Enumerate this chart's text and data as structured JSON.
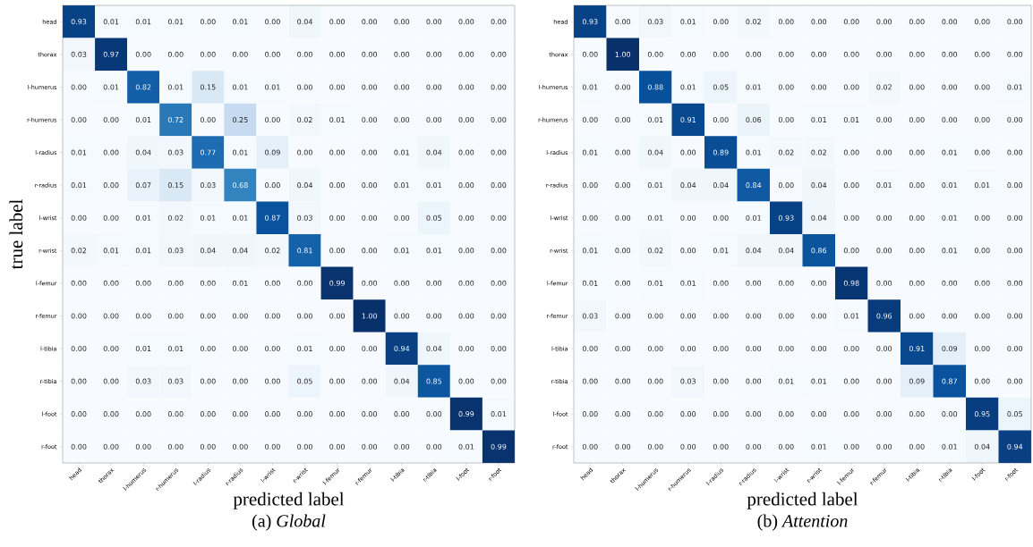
{
  "chart_data": [
    {
      "type": "heatmap",
      "title": "(a) *Global*",
      "xlabel": "predicted label",
      "ylabel": "true label",
      "categories": [
        "head",
        "thorax",
        "l-humerus",
        "r-humerus",
        "l-radius",
        "r-radius",
        "l-wrist",
        "r-wrist",
        "l-femur",
        "r-femur",
        "l-tibia",
        "r-tibia",
        "l-foot",
        "r-foot"
      ],
      "y_categories": [
        "head",
        "thorax",
        "l-humerus",
        "r-humerus",
        "l-radius",
        "r-radius",
        "l-wrist",
        "r-wrist",
        "l-femur",
        "r-femur",
        "l-tibia",
        "r-tibia",
        "l-foot",
        "r-foot"
      ],
      "cells": [
        [
          0.93,
          0.01,
          0.01,
          0.01,
          0,
          0.01,
          0,
          0.04,
          0,
          0,
          0,
          0,
          0,
          0
        ],
        [
          0.03,
          0.97,
          0,
          0,
          0,
          0,
          0,
          0,
          0,
          0,
          0,
          0,
          0,
          0
        ],
        [
          0,
          0.01,
          0.82,
          0.01,
          0.15,
          0.01,
          0.01,
          0,
          0,
          0,
          0,
          0,
          0,
          0
        ],
        [
          0,
          0,
          0.01,
          0.72,
          0,
          0.25,
          0,
          0.02,
          0.01,
          0,
          0,
          0,
          0,
          0
        ],
        [
          0.01,
          0,
          0.04,
          0.03,
          0.77,
          0.01,
          0.09,
          0,
          0,
          0,
          0.01,
          0.04,
          0,
          0
        ],
        [
          0.01,
          0,
          0.07,
          0.15,
          0.03,
          0.68,
          0,
          0.04,
          0,
          0,
          0.01,
          0.01,
          0,
          0
        ],
        [
          0,
          0,
          0.01,
          0.02,
          0.01,
          0.01,
          0.87,
          0.03,
          0,
          0,
          0,
          0.05,
          0,
          0
        ],
        [
          0.02,
          0.01,
          0.01,
          0.03,
          0.04,
          0.04,
          0.02,
          0.81,
          0,
          0,
          0.01,
          0.01,
          0,
          0
        ],
        [
          0,
          0,
          0,
          0,
          0,
          0.01,
          0,
          0,
          0.99,
          0,
          0,
          0,
          0,
          0
        ],
        [
          0,
          0,
          0,
          0,
          0,
          0,
          0,
          0,
          0,
          1,
          0,
          0,
          0,
          0
        ],
        [
          0,
          0,
          0.01,
          0.01,
          0,
          0,
          0,
          0.01,
          0,
          0,
          0.94,
          0.04,
          0,
          0
        ],
        [
          0,
          0,
          0.03,
          0.03,
          0,
          0,
          0,
          0.05,
          0,
          0,
          0.04,
          0.85,
          0,
          0
        ],
        [
          0,
          0,
          0,
          0,
          0,
          0,
          0,
          0,
          0,
          0,
          0,
          0,
          0.99,
          0.01
        ],
        [
          0,
          0,
          0,
          0,
          0,
          0,
          0,
          0,
          0,
          0,
          0,
          0,
          0.01,
          0.99
        ]
      ],
      "cell_labels": [
        [
          "0.93",
          "0.01",
          "0.01",
          "0.01",
          "0.00",
          "0.01",
          "0.00",
          "0.04",
          "0.00",
          "0.00",
          "0.00",
          "0.00",
          "0.00",
          "0.00"
        ],
        [
          "0.03",
          "0.97",
          "0.00",
          "0.00",
          "0.00",
          "0.00",
          "0.00",
          "0.00",
          "0.00",
          "0.00",
          "0.00",
          "0.00",
          "0.00",
          "0.00"
        ],
        [
          "0.00",
          "0.01",
          "0.82",
          "0.01",
          "0.15",
          "0.01",
          "0.01",
          "0.00",
          "0.00",
          "0.00",
          "0.00",
          "0.00",
          "0.00",
          "0.00"
        ],
        [
          "0.00",
          "0.00",
          "0.01",
          "0.72",
          "0.00",
          "0.25",
          "0.00",
          "0.02",
          "0.01",
          "0.00",
          "0.00",
          "0.00",
          "0.00",
          "0.00"
        ],
        [
          "0.01",
          "0.00",
          "0.04",
          "0.03",
          "0.77",
          "0.01",
          "0.09",
          "0.00",
          "0.00",
          "0.00",
          "0.01",
          "0.04",
          "0.00",
          "0.00"
        ],
        [
          "0.01",
          "0.00",
          "0.07",
          "0.15",
          "0.03",
          "0.68",
          "0.00",
          "0.04",
          "0.00",
          "0.00",
          "0.01",
          "0.01",
          "0.00",
          "0.00"
        ],
        [
          "0.00",
          "0.00",
          "0.01",
          "0.02",
          "0.01",
          "0.01",
          "0.87",
          "0.03",
          "0.00",
          "0.00",
          "0.00",
          "0.05",
          "0.00",
          "0.00"
        ],
        [
          "0.02",
          "0.01",
          "0.01",
          "0.03",
          "0.04",
          "0.04",
          "0.02",
          "0.81",
          "0.00",
          "0.00",
          "0.01",
          "0.01",
          "0.00",
          "0.00"
        ],
        [
          "0.00",
          "0.00",
          "0.00",
          "0.00",
          "0.00",
          "0.01",
          "0.00",
          "0.00",
          "0.99",
          "0.00",
          "0.00",
          "0.00",
          "0.00",
          "0.00"
        ],
        [
          "0.00",
          "0.00",
          "0.00",
          "0.00",
          "0.00",
          "0.00",
          "0.00",
          "0.00",
          "0.00",
          "1.00",
          "0.00",
          "0.00",
          "0.00",
          "0.00"
        ],
        [
          "0.00",
          "0.00",
          "0.01",
          "0.01",
          "0.00",
          "0.00",
          "0.00",
          "0.01",
          "0.00",
          "0.00",
          "0.94",
          "0.04",
          "0.00",
          "0.00"
        ],
        [
          "0.00",
          "0.00",
          "0.03",
          "0.03",
          "0.00",
          "0.00",
          "0.00",
          "0.05",
          "0.00",
          "0.00",
          "0.04",
          "0.85",
          "0.00",
          "0.00"
        ],
        [
          "0.00",
          "0.00",
          "0.00",
          "0.00",
          "0.00",
          "0.00",
          "0.00",
          "0.00",
          "0.00",
          "0.00",
          "0.00",
          "0.00",
          "0.99",
          "0.01"
        ],
        [
          "0.00",
          "0.00",
          "0.00",
          "0.00",
          "0.00",
          "0.00",
          "0.00",
          "0.00",
          "0.00",
          "0.00",
          "0.00",
          "0.00",
          "0.01",
          "0.99"
        ]
      ]
    },
    {
      "type": "heatmap",
      "title": "(b) *Attention*",
      "xlabel": "predicted label",
      "categories": [
        "head",
        "thorax",
        "l-humerus",
        "r-humerus",
        "l-radius",
        "r-radius",
        "l-wrist",
        "r-wrist",
        "l-femur",
        "r-femur",
        "l-tibia",
        "r-tibia",
        "l-foot",
        "r-foot"
      ],
      "y_categories": [
        "head",
        "thorax",
        "l-humerus",
        "r-humerus",
        "l-radius",
        "r-radius",
        "l-wrist",
        "r-wrist",
        "l-femur",
        "r-femur",
        "l-tibia",
        "r-tibia",
        "l-foot",
        "r-foot"
      ],
      "cells": [
        [
          0.93,
          0,
          0.03,
          0.01,
          0,
          0.02,
          0,
          0,
          0,
          0,
          0,
          0,
          0,
          0
        ],
        [
          0,
          1,
          0,
          0,
          0,
          0,
          0,
          0,
          0,
          0,
          0,
          0,
          0,
          0
        ],
        [
          0.01,
          0,
          0.88,
          0.01,
          0.05,
          0.01,
          0,
          0,
          0,
          0.02,
          0,
          0,
          0,
          0.01
        ],
        [
          0,
          0,
          0.01,
          0.91,
          0,
          0.06,
          0,
          0.01,
          0.01,
          0,
          0,
          0,
          0,
          0
        ],
        [
          0.01,
          0,
          0.04,
          0,
          0.89,
          0.01,
          0.02,
          0.02,
          0,
          0,
          0,
          0.01,
          0,
          0
        ],
        [
          0,
          0,
          0.01,
          0.04,
          0.04,
          0.84,
          0,
          0.04,
          0,
          0.01,
          0,
          0.01,
          0.01,
          0
        ],
        [
          0,
          0,
          0.01,
          0,
          0,
          0.01,
          0.93,
          0.04,
          0,
          0,
          0,
          0.01,
          0,
          0
        ],
        [
          0.01,
          0,
          0.02,
          0,
          0.01,
          0.04,
          0.04,
          0.86,
          0,
          0,
          0,
          0.01,
          0,
          0
        ],
        [
          0.01,
          0,
          0.01,
          0.01,
          0,
          0,
          0,
          0,
          0.98,
          0,
          0,
          0,
          0,
          0
        ],
        [
          0.03,
          0,
          0,
          0,
          0,
          0,
          0,
          0,
          0.01,
          0.96,
          0,
          0,
          0,
          0
        ],
        [
          0,
          0,
          0,
          0,
          0,
          0,
          0,
          0,
          0,
          0,
          0.91,
          0.09,
          0,
          0
        ],
        [
          0,
          0,
          0,
          0.03,
          0,
          0,
          0.01,
          0.01,
          0,
          0,
          0.09,
          0.87,
          0,
          0
        ],
        [
          0,
          0,
          0,
          0,
          0,
          0,
          0,
          0,
          0,
          0,
          0,
          0,
          0.95,
          0.05
        ],
        [
          0,
          0,
          0,
          0,
          0,
          0,
          0,
          0.01,
          0,
          0,
          0,
          0.01,
          0.04,
          0.94
        ]
      ],
      "cell_labels": [
        [
          "0.93",
          "0.00",
          "0.03",
          "0.01",
          "0.00",
          "0.02",
          "0.00",
          "0.00",
          "0.00",
          "0.00",
          "0.00",
          "0.00",
          "0.00",
          "0.00"
        ],
        [
          "0.00",
          "1.00",
          "0.00",
          "0.00",
          "0.00",
          "0.00",
          "0.00",
          "0.00",
          "0.00",
          "0.00",
          "0.00",
          "0.00",
          "0.00",
          "0.00"
        ],
        [
          "0.01",
          "0.00",
          "0.88",
          "0.01",
          "0.05",
          "0.01",
          "0.00",
          "0.00",
          "0.00",
          "0.02",
          "0.00",
          "0.00",
          "0.00",
          "0.01"
        ],
        [
          "0.00",
          "0.00",
          "0.01",
          "0.91",
          "0.00",
          "0.06",
          "0.00",
          "0.01",
          "0.01",
          "0.00",
          "0.00",
          "0.00",
          "0.00",
          "0.00"
        ],
        [
          "0.01",
          "0.00",
          "0.04",
          "0.00",
          "0.89",
          "0.01",
          "0.02",
          "0.02",
          "0.00",
          "0.00",
          "0.00",
          "0.01",
          "0.00",
          "0.00"
        ],
        [
          "0.00",
          "0.00",
          "0.01",
          "0.04",
          "0.04",
          "0.84",
          "0.00",
          "0.04",
          "0.00",
          "0.01",
          "0.00",
          "0.01",
          "0.01",
          "0.00"
        ],
        [
          "0.00",
          "0.00",
          "0.01",
          "0.00",
          "0.00",
          "0.01",
          "0.93",
          "0.04",
          "0.00",
          "0.00",
          "0.00",
          "0.01",
          "0.00",
          "0.00"
        ],
        [
          "0.01",
          "0.00",
          "0.02",
          "0.00",
          "0.01",
          "0.04",
          "0.04",
          "0.86",
          "0.00",
          "0.00",
          "0.00",
          "0.01",
          "0.00",
          "0.00"
        ],
        [
          "0.01",
          "0.00",
          "0.01",
          "0.01",
          "0.00",
          "0.00",
          "0.00",
          "0.00",
          "0.98",
          "0.00",
          "0.00",
          "0.00",
          "0.00",
          "0.00"
        ],
        [
          "0.03",
          "0.00",
          "0.00",
          "0.00",
          "0.00",
          "0.00",
          "0.00",
          "0.00",
          "0.01",
          "0.96",
          "0.00",
          "0.00",
          "0.00",
          "0.00"
        ],
        [
          "0.00",
          "0.00",
          "0.00",
          "0.00",
          "0.00",
          "0.00",
          "0.00",
          "0.00",
          "0.00",
          "0.00",
          "0.91",
          "0.09",
          "0.00",
          "0.00"
        ],
        [
          "0.00",
          "0.00",
          "0.00",
          "0.03",
          "0.00",
          "0.00",
          "0.01",
          "0.01",
          "0.00",
          "0.00",
          "0.09",
          "0.87",
          "0.00",
          "0.00"
        ],
        [
          "0.00",
          "0.00",
          "0.00",
          "0.00",
          "0.00",
          "0.00",
          "0.00",
          "0.00",
          "0.00",
          "0.00",
          "0.00",
          "0.00",
          "0.95",
          "0.05"
        ],
        [
          "0.00",
          "0.00",
          "0.00",
          "0.00",
          "0.00",
          "0.00",
          "0.00",
          "0.01",
          "0.00",
          "0.00",
          "0.00",
          "0.01",
          "0.04",
          "0.94"
        ]
      ]
    }
  ]
}
